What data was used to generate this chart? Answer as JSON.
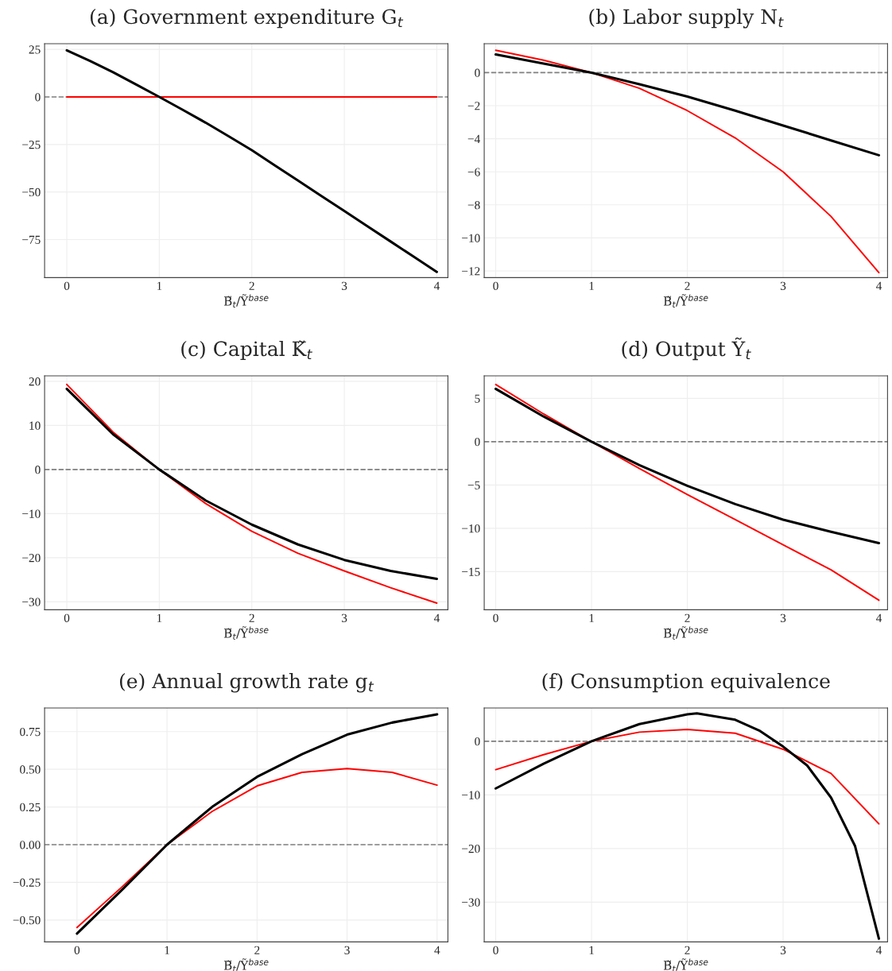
{
  "chart_data": [
    {
      "type": "line",
      "title": "(a) Government expenditure G$_{t}$",
      "xlabel": "B̃$_{t}$/Ỹ$^{base}$",
      "xlim": [
        -0.24,
        4.12
      ],
      "xticks": [
        0,
        1,
        2,
        3,
        4
      ],
      "ylim": [
        -95,
        28
      ],
      "yticks": [
        25,
        0,
        {
          "value": -25,
          "label": "−25"
        },
        {
          "value": -50,
          "label": "−50"
        },
        {
          "value": -75,
          "label": "−75"
        }
      ],
      "grid": true,
      "ref_lines": [
        {
          "axis": "y",
          "value": 0,
          "color": "#808080",
          "line_style": "dashed"
        }
      ],
      "series": [
        {
          "color": "#000000",
          "x": [
            0,
            0.25,
            0.5,
            0.75,
            1,
            1.25,
            1.5,
            1.75,
            2,
            2.25,
            2.5,
            2.75,
            3,
            3.25,
            3.5,
            3.75,
            4
          ],
          "values": [
            24.5,
            19,
            13,
            6.5,
            0,
            -6.7,
            -13.5,
            -20.7,
            -28,
            -36,
            -44,
            -52,
            -60,
            -68,
            -76,
            -84,
            -92
          ]
        },
        {
          "color": "#ff0000",
          "x": [
            0,
            1,
            2,
            3,
            4
          ],
          "values": [
            0,
            0,
            0,
            0,
            0
          ]
        }
      ]
    },
    {
      "type": "line",
      "title": "(b) Labor supply N$_{t}$",
      "xlabel": "B̃$_{t}$/Ỹ$^{base}$",
      "xlim": [
        -0.12,
        4.09
      ],
      "xticks": [
        0,
        1,
        2,
        3,
        4
      ],
      "ylim": [
        -12.4,
        1.75
      ],
      "yticks": [
        0,
        {
          "value": -2,
          "label": "−2"
        },
        {
          "value": -4,
          "label": "−4"
        },
        {
          "value": -6,
          "label": "−6"
        },
        {
          "value": -8,
          "label": "−8"
        },
        {
          "value": -10,
          "label": "−10"
        },
        {
          "value": -12,
          "label": "−12"
        }
      ],
      "grid": true,
      "ref_lines": [
        {
          "axis": "y",
          "value": 0,
          "color": "#808080",
          "line_style": "dashed"
        }
      ],
      "series": [
        {
          "color": "#000000",
          "x": [
            0,
            0.5,
            1,
            1.5,
            2,
            2.5,
            3,
            3.5,
            4
          ],
          "values": [
            1.1,
            0.55,
            0,
            -0.7,
            -1.45,
            -2.3,
            -3.2,
            -4.1,
            -5.0
          ]
        },
        {
          "color": "#ff0000",
          "x": [
            0,
            0.5,
            1,
            1.5,
            2,
            2.5,
            3,
            3.5,
            4
          ],
          "values": [
            1.35,
            0.75,
            0,
            -0.95,
            -2.3,
            -3.95,
            -6.0,
            -8.7,
            -12.1
          ]
        }
      ]
    },
    {
      "type": "line",
      "title": "(c) Capital K̃$_{t}$",
      "xlabel": "B̃$_{t}$/Ỹ$^{base}$",
      "xlim": [
        -0.24,
        4.12
      ],
      "xticks": [
        0,
        1,
        2,
        3,
        4
      ],
      "ylim": [
        -31.8,
        21.25
      ],
      "yticks": [
        20,
        10,
        0,
        {
          "value": -10,
          "label": "−10"
        },
        {
          "value": -20,
          "label": "−20"
        },
        {
          "value": -30,
          "label": "−30"
        }
      ],
      "grid": true,
      "ref_lines": [
        {
          "axis": "y",
          "value": 0,
          "color": "#808080",
          "line_style": "dashed"
        }
      ],
      "series": [
        {
          "color": "#000000",
          "x": [
            0,
            0.5,
            1,
            1.5,
            2,
            2.5,
            3,
            3.5,
            4
          ],
          "values": [
            18.3,
            8,
            0,
            -7,
            -12.5,
            -17,
            -20.5,
            -23,
            -24.8
          ]
        },
        {
          "color": "#ff0000",
          "x": [
            0,
            0.5,
            1,
            1.5,
            2,
            2.5,
            3,
            3.5,
            4
          ],
          "values": [
            19.3,
            8.5,
            0,
            -7.7,
            -14,
            -19,
            -23,
            -26.8,
            -30.3
          ]
        }
      ]
    },
    {
      "type": "line",
      "title": "(d) Output Ỹ$_{t}$",
      "xlabel": "B̃$_{t}$/Ỹ$^{base}$",
      "xlim": [
        -0.12,
        4.09
      ],
      "xticks": [
        0,
        1,
        2,
        3,
        4
      ],
      "ylim": [
        -19.4,
        7.6
      ],
      "yticks": [
        5,
        0,
        {
          "value": -5,
          "label": "−5"
        },
        {
          "value": -10,
          "label": "−10"
        },
        {
          "value": -15,
          "label": "−15"
        }
      ],
      "grid": true,
      "ref_lines": [
        {
          "axis": "y",
          "value": 0,
          "color": "#808080",
          "line_style": "dashed"
        }
      ],
      "series": [
        {
          "color": "#000000",
          "x": [
            0,
            0.5,
            1,
            1.5,
            2,
            2.5,
            3,
            3.5,
            4
          ],
          "values": [
            6.1,
            2.9,
            0,
            -2.7,
            -5.1,
            -7.2,
            -9.0,
            -10.4,
            -11.7
          ]
        },
        {
          "color": "#ff0000",
          "x": [
            0,
            0.5,
            1,
            1.5,
            2,
            2.5,
            3,
            3.5,
            4
          ],
          "values": [
            6.6,
            3.2,
            0,
            -3.1,
            -6.1,
            -9.0,
            -11.9,
            -14.8,
            -18.3
          ]
        }
      ]
    },
    {
      "type": "line",
      "title": "(e) Annual growth rate g$_{t}$",
      "xlabel": "B̃$_{t}$/Ỹ$^{base}$",
      "xlim": [
        -0.36,
        4.12
      ],
      "xticks": [
        0,
        1,
        2,
        3,
        4
      ],
      "ylim": [
        -0.645,
        0.907
      ],
      "yticks": [
        {
          "value": 0.75,
          "label": "0.75"
        },
        {
          "value": 0.5,
          "label": "0.50"
        },
        {
          "value": 0.25,
          "label": "0.25"
        },
        {
          "value": 0,
          "label": "0.00"
        },
        {
          "value": -0.25,
          "label": "−0.25"
        },
        {
          "value": -0.5,
          "label": "−0.50"
        }
      ],
      "grid": true,
      "ref_lines": [
        {
          "axis": "y",
          "value": 0,
          "color": "#808080",
          "line_style": "dashed"
        }
      ],
      "series": [
        {
          "color": "#000000",
          "x": [
            0,
            0.5,
            1,
            1.5,
            2,
            2.5,
            3,
            3.5,
            4
          ],
          "values": [
            -0.59,
            -0.3,
            0,
            0.25,
            0.45,
            0.6,
            0.73,
            0.81,
            0.865
          ]
        },
        {
          "color": "#ff0000",
          "x": [
            0,
            0.5,
            1,
            1.5,
            2,
            2.5,
            3,
            3.5,
            4
          ],
          "values": [
            -0.55,
            -0.28,
            0,
            0.22,
            0.39,
            0.48,
            0.505,
            0.48,
            0.395
          ]
        }
      ]
    },
    {
      "type": "line",
      "title": "(f) Consumption equivalence",
      "xlabel": "B̃$_{t}$/Ỹ$^{base}$",
      "xlim": [
        -0.12,
        4.09
      ],
      "xticks": [
        0,
        1,
        2,
        3,
        4
      ],
      "ylim": [
        -37.4,
        6.2
      ],
      "yticks": [
        0,
        {
          "value": -10,
          "label": "−10"
        },
        {
          "value": -20,
          "label": "−20"
        },
        {
          "value": -30,
          "label": "−30"
        }
      ],
      "grid": true,
      "ref_lines": [
        {
          "axis": "y",
          "value": 0,
          "color": "#808080",
          "line_style": "dashed"
        }
      ],
      "series": [
        {
          "color": "#000000",
          "x": [
            0,
            0.5,
            1,
            1.5,
            2,
            2.1,
            2.5,
            2.75,
            3,
            3.25,
            3.5,
            3.75,
            4
          ],
          "values": [
            -8.8,
            -4.2,
            0,
            3.2,
            5.0,
            5.2,
            4.0,
            2.0,
            -1,
            -4.5,
            -10.5,
            -19.5,
            -36.8
          ]
        },
        {
          "color": "#ff0000",
          "x": [
            0,
            0.5,
            1,
            1.5,
            2,
            2.5,
            3,
            3.5,
            4
          ],
          "values": [
            -5.3,
            -2.5,
            0,
            1.7,
            2.2,
            1.5,
            -1.5,
            -6,
            -15.4
          ]
        }
      ]
    }
  ]
}
